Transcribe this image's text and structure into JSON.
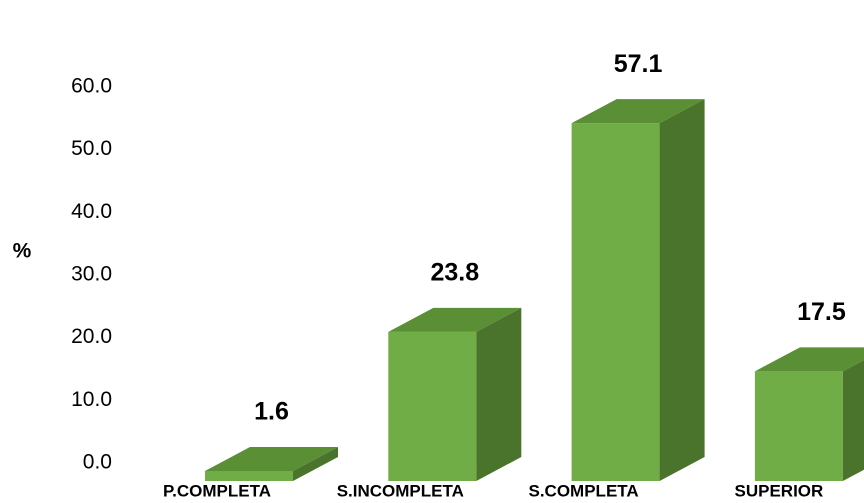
{
  "chart_data": {
    "type": "bar3d",
    "y_label": "%",
    "categories": [
      "P.COMPLETA",
      "S.INCOMPLETA",
      "S.COMPLETA",
      "SUPERIOR"
    ],
    "values": [
      1.6,
      23.8,
      57.1,
      17.5
    ],
    "color": "#70ad47",
    "ylim": [
      0,
      60
    ],
    "yticks": [
      {
        "value": 0,
        "label": "0.0"
      },
      {
        "value": 10,
        "label": "10.0"
      },
      {
        "value": 20,
        "label": "20.0"
      },
      {
        "value": 30,
        "label": "30.0"
      },
      {
        "value": 40,
        "label": "40.0"
      },
      {
        "value": 50,
        "label": "50.0"
      },
      {
        "value": 60,
        "label": "60.0"
      }
    ]
  }
}
